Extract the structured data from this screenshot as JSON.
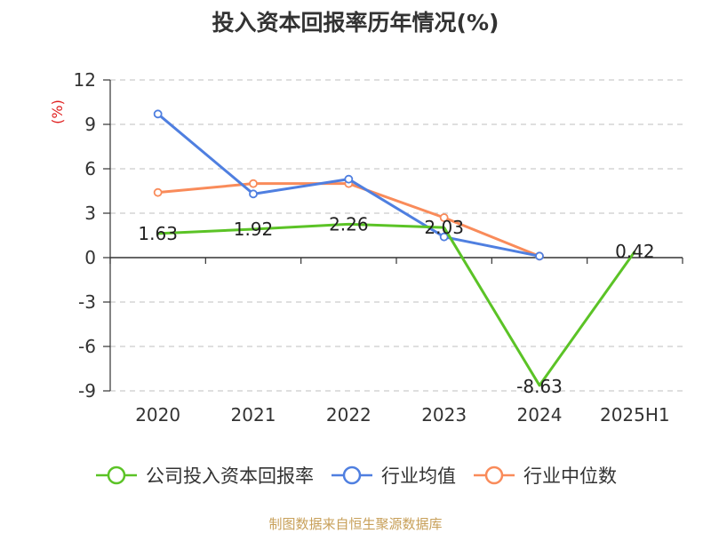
{
  "title": "投入资本回报率历年情况(%)",
  "source": "制图数据来自恒生聚源数据库",
  "colors": {
    "company": "#5bc326",
    "industry_avg": "#4f7fe0",
    "industry_median": "#f98b5a",
    "axis": "#333333",
    "grid": "#cccccc",
    "unit": "#e02020"
  },
  "chart_data": {
    "type": "line",
    "title": "投入资本回报率历年情况(%)",
    "xlabel": "",
    "ylabel": "(%)",
    "categories": [
      "2020",
      "2021",
      "2022",
      "2023",
      "2024",
      "2025H1"
    ],
    "ylim": [
      -9,
      12
    ],
    "yticks": [
      12,
      9,
      6,
      3,
      0,
      -3,
      -6,
      -9
    ],
    "grid": true,
    "legend_position": "bottom",
    "series": [
      {
        "name": "公司投入资本回报率",
        "values": [
          1.63,
          1.92,
          2.26,
          2.03,
          -8.63,
          0.42
        ],
        "labels": [
          "1.63",
          "1.92",
          "2.26",
          "2.03",
          "-8.63",
          "0.42"
        ],
        "color_key": "company"
      },
      {
        "name": "行业均值",
        "values": [
          9.7,
          4.3,
          5.3,
          1.4,
          0.1,
          null
        ],
        "color_key": "industry_avg"
      },
      {
        "name": "行业中位数",
        "values": [
          4.4,
          5.0,
          5.0,
          2.7,
          0.1,
          null
        ],
        "color_key": "industry_median"
      }
    ]
  }
}
